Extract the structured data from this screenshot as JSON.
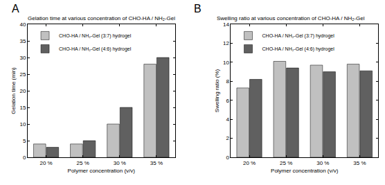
{
  "chart_data": [
    {
      "type": "bar",
      "annotations": [
        "A"
      ],
      "title": "Gelation time at various concentration of CHO-HA / NH₂-Gel",
      "x_label": "Polymer concentration (v/v)",
      "y_label": "Gelation time (min)",
      "categories": [
        "20 %",
        "25 %",
        "30 %",
        "35 %"
      ],
      "series": [
        {
          "name": "CHO-HA / NH₂-Gel (3:7) hydrogel",
          "color": "#c0c0c0",
          "values": [
            4,
            4,
            10,
            28
          ]
        },
        {
          "name": "CHO-HA / NH₂-Gel (4:6) hydrogel",
          "color": "#606060",
          "values": [
            3,
            5,
            15,
            30
          ]
        }
      ],
      "ylim": [
        0,
        40
      ],
      "yticks": [
        0,
        5,
        10,
        15,
        20,
        25,
        30,
        35,
        40
      ],
      "grid": false,
      "legend": "upper left"
    },
    {
      "type": "bar",
      "annotations": [
        "B"
      ],
      "title": "Swelling ratio at various concentration of CHO-HA / NH₂-Gel",
      "x_label": "Polymer concentration (v/v)",
      "y_label": "Swelling ratio (%)",
      "categories": [
        "20 %",
        "25 %",
        "30 %",
        "35 %"
      ],
      "series": [
        {
          "name": "CHO-HA / NH₂-Gel (3:7) hydrogel",
          "color": "#c0c0c0",
          "values": [
            7.3,
            10.1,
            9.7,
            9.8
          ]
        },
        {
          "name": "CHO-HA / NH₂-Gel (4:6) hydrogel",
          "color": "#606060",
          "values": [
            8.2,
            9.4,
            9.0,
            9.1
          ]
        }
      ],
      "ylim": [
        0,
        14
      ],
      "yticks": [
        0,
        2,
        4,
        6,
        8,
        10,
        12,
        14
      ],
      "grid": false,
      "legend": "upper left"
    }
  ]
}
